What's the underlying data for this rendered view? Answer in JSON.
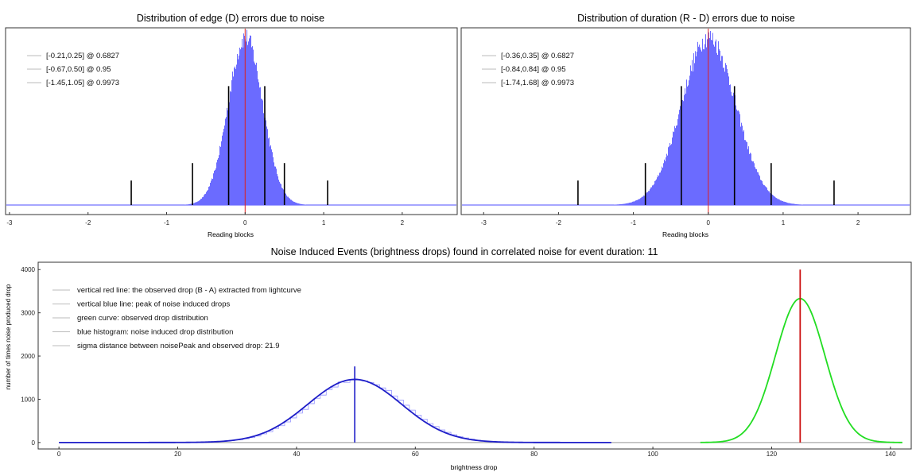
{
  "colors": {
    "hist_fill": "#6b6bff",
    "hist_edge": "#4d4dff",
    "red_line": "#dd2020",
    "black_line": "#000000",
    "blue_curve": "#1e1ec8",
    "blue_line": "#1e1ec8",
    "green_curve": "#22dd22",
    "red_peak": "#cc1111",
    "frame": "#333333",
    "legend_line": "#bbbbbb"
  },
  "chart_data": [
    {
      "id": "edge",
      "type": "bar",
      "title": "Distribution of edge (D) errors due to noise",
      "xlabel": "Reading blocks",
      "ylabel": "",
      "xlim": [
        -3.05,
        2.7
      ],
      "xticks": [
        -3,
        -2,
        -1,
        0,
        1,
        2
      ],
      "distribution": {
        "mean": 0.0,
        "sigma": 0.22,
        "peak_fraction": 0.96
      },
      "observed_line": 0.0,
      "legend": [
        "[-0.21,0.25] @ 0.6827",
        "[-0.67,0.50] @ 0.95",
        "[-1.45,1.05] @ 0.9973"
      ],
      "interval_markers": [
        {
          "x": -0.21,
          "h": 0.68
        },
        {
          "x": 0.25,
          "h": 0.68
        },
        {
          "x": -0.67,
          "h": 0.24
        },
        {
          "x": 0.5,
          "h": 0.24
        },
        {
          "x": -1.45,
          "h": 0.14
        },
        {
          "x": 1.05,
          "h": 0.14
        }
      ]
    },
    {
      "id": "duration",
      "type": "bar",
      "title": "Distribution of duration (R - D) errors due to noise",
      "xlabel": "Reading blocks",
      "ylabel": "",
      "xlim": [
        -3.3,
        2.7
      ],
      "xticks": [
        -3,
        -2,
        -1,
        0,
        1,
        2
      ],
      "distribution": {
        "mean": 0.0,
        "sigma": 0.36,
        "peak_fraction": 0.96
      },
      "observed_line": 0.0,
      "legend": [
        "[-0.36,0.35] @ 0.6827",
        "[-0.84,0.84] @ 0.95",
        "[-1.74,1.68] @ 0.9973"
      ],
      "interval_markers": [
        {
          "x": -0.36,
          "h": 0.68
        },
        {
          "x": 0.35,
          "h": 0.68
        },
        {
          "x": -0.84,
          "h": 0.24
        },
        {
          "x": 0.84,
          "h": 0.24
        },
        {
          "x": -1.74,
          "h": 0.14
        },
        {
          "x": 1.68,
          "h": 0.14
        }
      ]
    },
    {
      "id": "drops",
      "type": "line",
      "title": "Noise Induced Events (brightness drops) found in correlated noise for event duration: 11",
      "xlabel": "brightness drop",
      "ylabel": "number of times noise produced drop",
      "xlim": [
        -3.5,
        143.5
      ],
      "ylim": [
        -150,
        4170
      ],
      "xticks": [
        0,
        20,
        40,
        60,
        80,
        100,
        120,
        140
      ],
      "yticks": [
        0,
        1000,
        2000,
        3000,
        4000
      ],
      "noise_curve": {
        "mean": 49.8,
        "sigma": 7.9,
        "peak": 1460,
        "x_range": [
          0,
          93
        ]
      },
      "noise_peak_line": {
        "x": 49.8,
        "y_top": 1760
      },
      "observed_curve": {
        "mean": 124.8,
        "sigma": 4.15,
        "peak": 3330,
        "x_range": [
          108,
          142
        ]
      },
      "observed_line": {
        "x": 124.8,
        "y_top": 4000
      },
      "legend": [
        "vertical red line: the observed drop (B - A) extracted from lightcurve",
        "vertical blue line: peak of noise induced drops",
        "green curve: observed drop distribution",
        "blue histogram: noise induced drop distribution",
        "sigma distance between noisePeak and observed drop: 21.9"
      ]
    }
  ]
}
